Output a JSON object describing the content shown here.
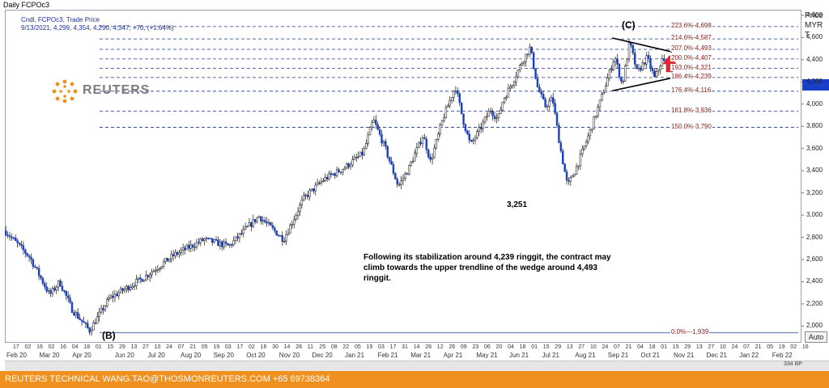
{
  "window": {
    "title": "Daily FCPOc3"
  },
  "info": {
    "line1": "Cndl, FCPOc3, Trade Price",
    "line2": "9/13/2021, 4,299, 4,354, 4,290, 4,347, +70, (+1.64%)"
  },
  "logo": {
    "text": "REUTERS"
  },
  "axis": {
    "title_line1": "Price",
    "title_line2": "MYR",
    "title_line3": "T"
  },
  "footer": {
    "text": "REUTERS TECHNICAL  WANG.TAO@THOSMONREUTERS.COM  +65 69738364"
  },
  "scrollbar": {
    "text": "334  BP"
  },
  "auto_button": {
    "label": "Auto"
  },
  "colors": {
    "fib_line": "#1a3a8c",
    "candle": "#1a3fc7",
    "arrow": "#e8282d",
    "footer": "#f0901e"
  },
  "chart_data": {
    "type": "candlestick",
    "title": "",
    "ylim": [
      1850,
      4850
    ],
    "yticks": [
      {
        "value": 4800,
        "label": "4,800"
      },
      {
        "value": 4600,
        "label": "4,600"
      },
      {
        "value": 4400,
        "label": "4,400"
      },
      {
        "value": 4200,
        "label": "4,200"
      },
      {
        "value": 4000,
        "label": "4,000"
      },
      {
        "value": 3800,
        "label": "3,800"
      },
      {
        "value": 3600,
        "label": "3,600"
      },
      {
        "value": 3400,
        "label": "3,400"
      },
      {
        "value": 3200,
        "label": "3,200"
      },
      {
        "value": 3000,
        "label": "3,000"
      },
      {
        "value": 2800,
        "label": "2,800"
      },
      {
        "value": 2600,
        "label": "2,600"
      },
      {
        "value": 2400,
        "label": "2,400"
      },
      {
        "value": 2200,
        "label": "2,200"
      },
      {
        "value": 2000,
        "label": "2,000"
      }
    ],
    "x_day_ticks": [
      "17",
      "02",
      "16",
      "02",
      "16",
      "04",
      "18",
      "01",
      "15",
      "29",
      "13",
      "27",
      "10",
      "24",
      "07",
      "21",
      "05",
      "19",
      "03",
      "17",
      "02",
      "16",
      "30",
      "14",
      "28",
      "11",
      "25",
      "08",
      "22",
      "05",
      "19",
      "03",
      "17",
      "31",
      "14",
      "28",
      "12",
      "26",
      "09",
      "23",
      "06",
      "20",
      "04",
      "18",
      "01",
      "15",
      "29",
      "13",
      "27",
      "10",
      "24",
      "07",
      "21",
      "04",
      "18",
      "01",
      "15",
      "29",
      "13",
      "27",
      "10",
      "24",
      "07",
      "21",
      "05",
      "19",
      "02",
      "16"
    ],
    "x_months": [
      "Feb 20",
      "Mar 20",
      "Apr 20",
      "Jun 20",
      "Jul 20",
      "Aug 20",
      "Sep 20",
      "Oct 20",
      "Nov 20",
      "Dec 20",
      "Jan 21",
      "Feb 21",
      "Mar 21",
      "Apr 21",
      "May 21",
      "Jun 21",
      "Jul 21",
      "Aug 21",
      "Sep 21",
      "Oct 21",
      "Nov 21",
      "Dec 21",
      "Jan 22",
      "Feb 22"
    ],
    "price_path": [
      {
        "t": 0.0,
        "p": 2860
      },
      {
        "t": 0.05,
        "p": 2620
      },
      {
        "t": 0.09,
        "p": 2280
      },
      {
        "t": 0.11,
        "p": 2400
      },
      {
        "t": 0.135,
        "p": 2150
      },
      {
        "t": 0.17,
        "p": 1960
      },
      {
        "t": 0.21,
        "p": 2250
      },
      {
        "t": 0.28,
        "p": 2440
      },
      {
        "t": 0.34,
        "p": 2640
      },
      {
        "t": 0.4,
        "p": 2780
      },
      {
        "t": 0.45,
        "p": 2720
      },
      {
        "t": 0.51,
        "p": 2990
      },
      {
        "t": 0.56,
        "p": 2780
      },
      {
        "t": 0.6,
        "p": 3150
      },
      {
        "t": 0.64,
        "p": 3320
      },
      {
        "t": 0.68,
        "p": 3420
      },
      {
        "t": 0.72,
        "p": 3560
      },
      {
        "t": 0.74,
        "p": 3860
      },
      {
        "t": 0.765,
        "p": 3590
      },
      {
        "t": 0.79,
        "p": 3260
      },
      {
        "t": 0.81,
        "p": 3410
      },
      {
        "t": 0.84,
        "p": 3720
      },
      {
        "t": 0.855,
        "p": 3480
      },
      {
        "t": 0.88,
        "p": 3870
      },
      {
        "t": 0.905,
        "p": 4160
      },
      {
        "t": 0.92,
        "p": 3860
      },
      {
        "t": 0.935,
        "p": 3630
      },
      {
        "t": 0.955,
        "p": 3780
      },
      {
        "t": 0.975,
        "p": 3950
      },
      {
        "t": 0.99,
        "p": 3860
      },
      {
        "t": 1.0,
        "p": 4030
      },
      {
        "t": 1.02,
        "p": 4200
      },
      {
        "t": 1.04,
        "p": 4390
      },
      {
        "t": 1.055,
        "p": 4510
      },
      {
        "t": 1.07,
        "p": 4150
      },
      {
        "t": 1.085,
        "p": 3980
      },
      {
        "t": 1.1,
        "p": 4050
      },
      {
        "t": 1.115,
        "p": 3620
      },
      {
        "t": 1.13,
        "p": 3260
      },
      {
        "t": 1.15,
        "p": 3450
      },
      {
        "t": 1.18,
        "p": 3810
      },
      {
        "t": 1.21,
        "p": 4220
      },
      {
        "t": 1.225,
        "p": 4430
      },
      {
        "t": 1.24,
        "p": 4170
      },
      {
        "t": 1.255,
        "p": 4560
      },
      {
        "t": 1.27,
        "p": 4280
      },
      {
        "t": 1.29,
        "p": 4420
      },
      {
        "t": 1.305,
        "p": 4230
      },
      {
        "t": 1.32,
        "p": 4400
      },
      {
        "t": 1.33,
        "p": 4347
      }
    ],
    "fib_levels": [
      {
        "label": "223.6%-4,698",
        "value": 4698
      },
      {
        "label": "214.6%-4,587",
        "value": 4587
      },
      {
        "label": "207.0%-4,493",
        "value": 4493
      },
      {
        "label": "200.0%-4,407",
        "value": 4407
      },
      {
        "label": "193.0%-4,321",
        "value": 4321
      },
      {
        "label": "186.4%-4,239",
        "value": 4239
      },
      {
        "label": "176.4%-4,116",
        "value": 4116
      },
      {
        "label": "161.8%-3,936",
        "value": 3936
      },
      {
        "label": "150.0%-3,790",
        "value": 3790
      },
      {
        "label": "0.0%---1,939",
        "value": 1939
      }
    ],
    "wedge": {
      "upper": [
        {
          "t": 1.22,
          "p": 4595
        },
        {
          "t": 1.34,
          "p": 4470
        }
      ],
      "lower": [
        {
          "t": 1.22,
          "p": 4120
        },
        {
          "t": 1.34,
          "p": 4235
        }
      ]
    },
    "annotations": {
      "wave_c": "(C)",
      "wave_b": "(B)",
      "low_label": "3,251",
      "text": "Following its stabilization around 4,239 ringgit, the contract may climb towards the upper trendline of the wedge around 4,493 ringgit."
    }
  }
}
